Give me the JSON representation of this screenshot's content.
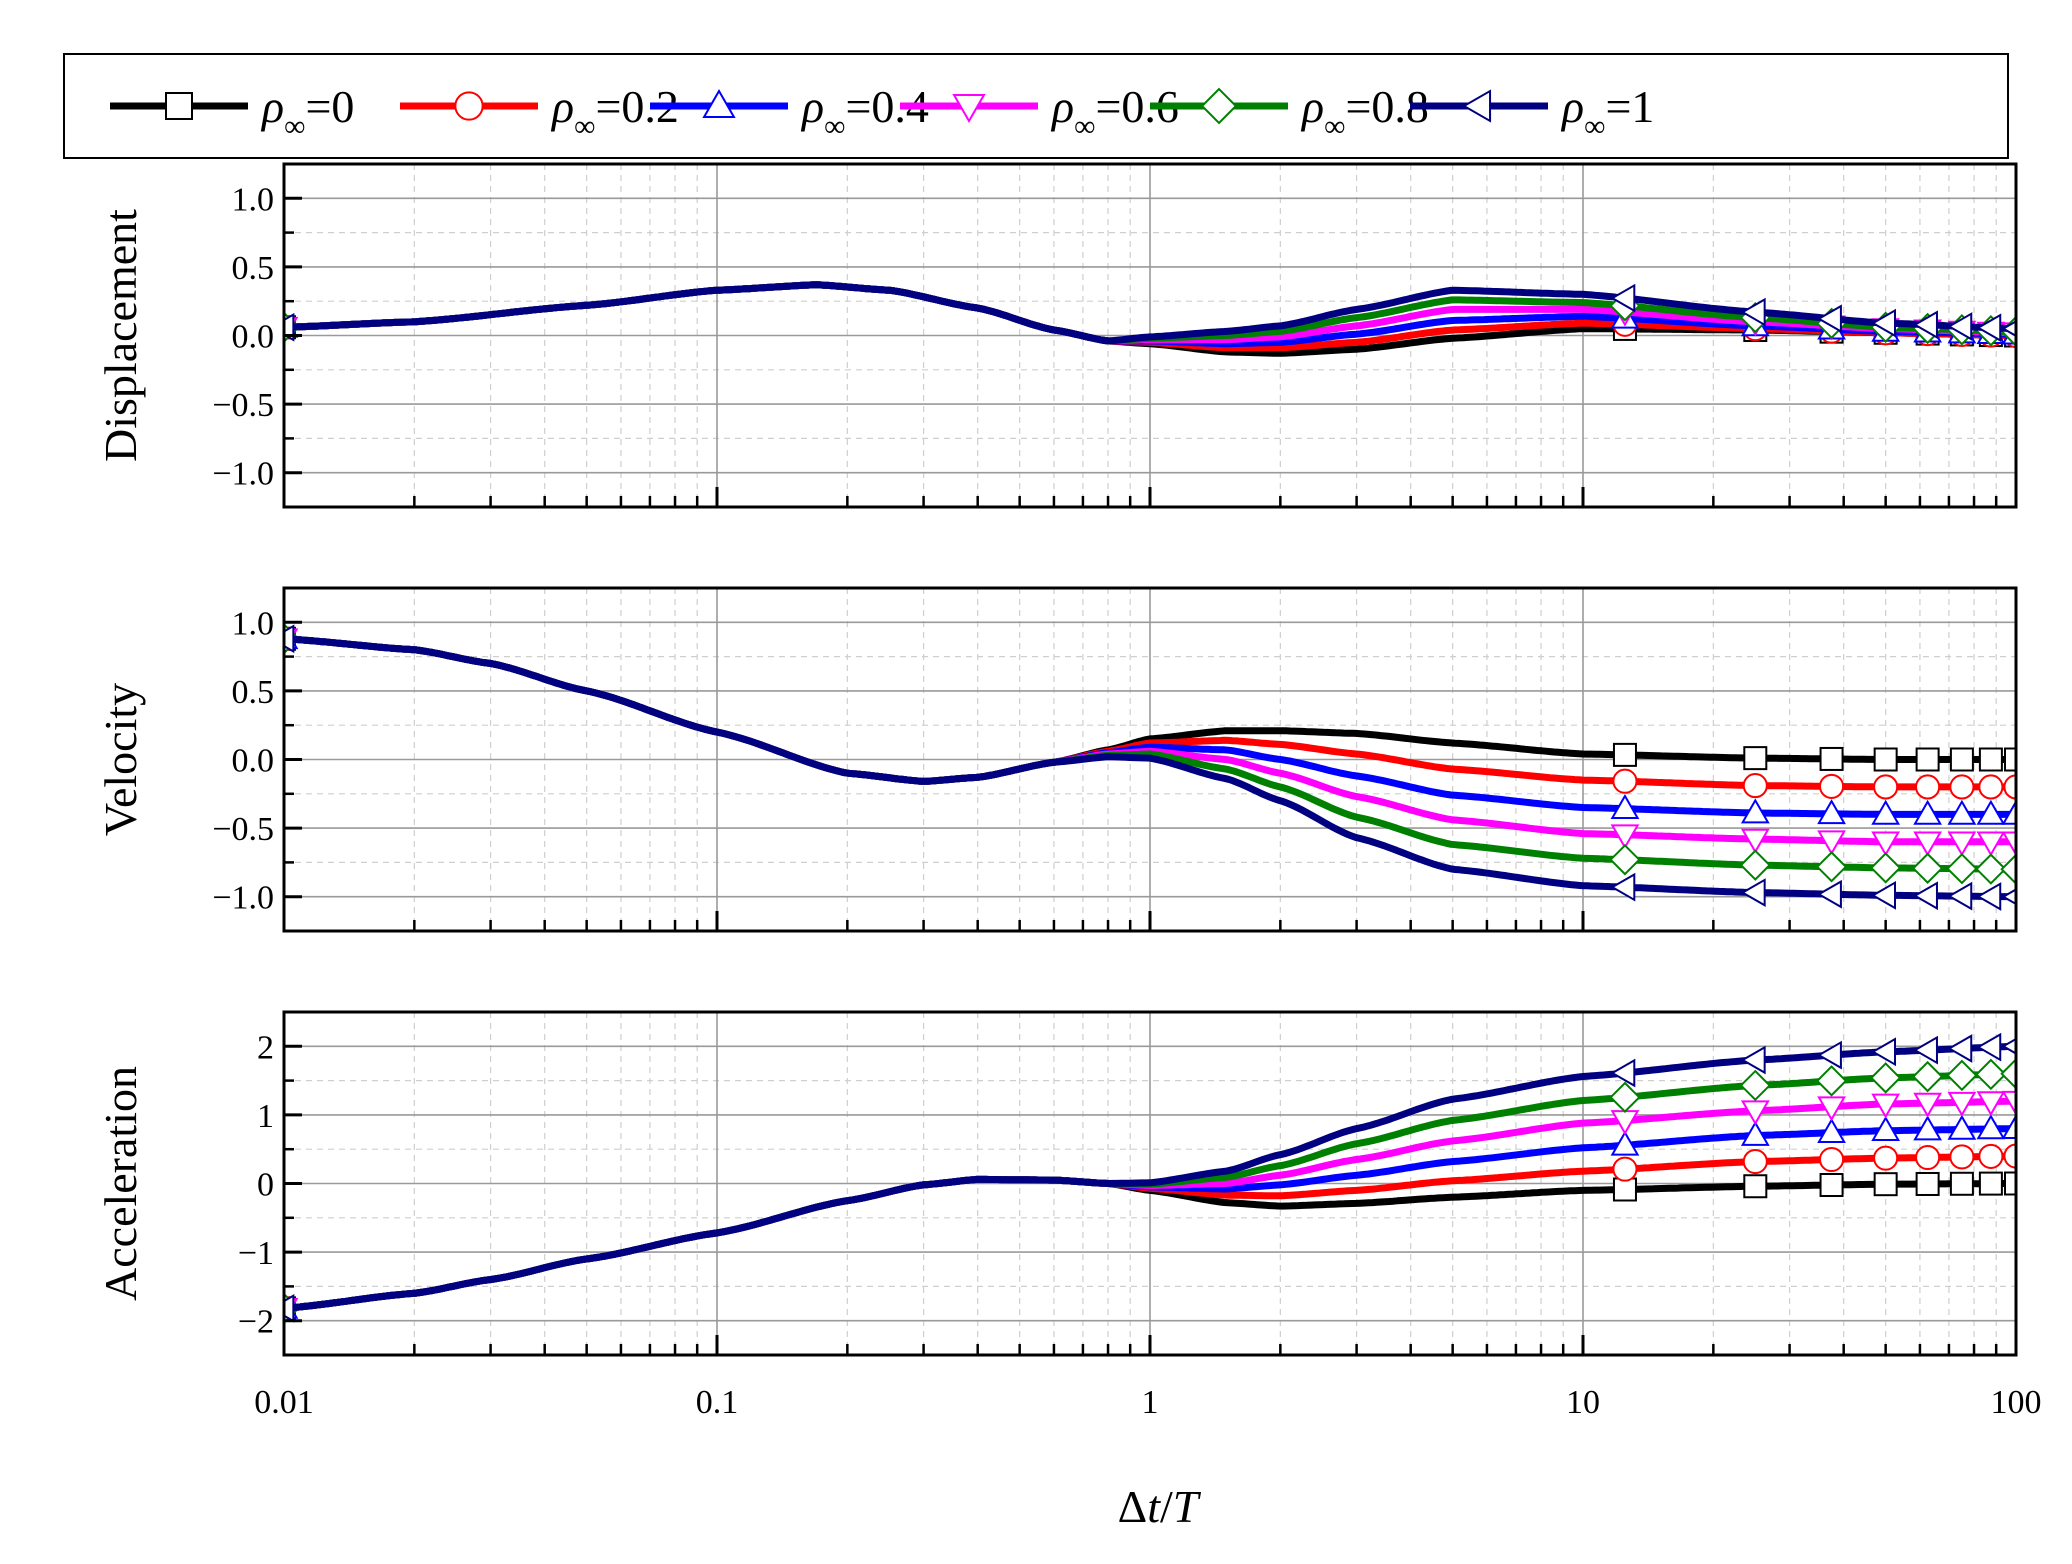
{
  "chart_data": {
    "type": "line",
    "x_scale": "log",
    "xlabel_delta": "Δ",
    "xlabel_t": "t",
    "xlabel_slash": "/",
    "xlabel_T": "T",
    "xlim": [
      0.01,
      100
    ],
    "xticks": [
      0.01,
      0.1,
      1,
      10,
      100
    ],
    "xtick_labels": [
      "0.01",
      "0.1",
      "1",
      "10",
      "100"
    ],
    "grid": true,
    "legend": {
      "placement": "top",
      "symbol": "ρ",
      "subscript": "∞",
      "entries": [
        "=0",
        "=0.2",
        "=0.4",
        "=0.6",
        "=0.8",
        "=1"
      ]
    },
    "series": [
      {
        "name": "ρ∞=0",
        "rho": 0,
        "color": "#000000",
        "marker": "square"
      },
      {
        "name": "ρ∞=0.2",
        "rho": 0.2,
        "color": "#ff0000",
        "marker": "circle"
      },
      {
        "name": "ρ∞=0.4",
        "rho": 0.4,
        "color": "#0000ff",
        "marker": "triangle-up"
      },
      {
        "name": "ρ∞=0.6",
        "rho": 0.6,
        "color": "#ff00ff",
        "marker": "triangle-down"
      },
      {
        "name": "ρ∞=0.8",
        "rho": 0.8,
        "color": "#008000",
        "marker": "diamond"
      },
      {
        "name": "ρ∞=1",
        "rho": 1,
        "color": "#000080",
        "marker": "triangle-left"
      }
    ],
    "marker_x": [
      12.5,
      25,
      37.5,
      50,
      62.5,
      75,
      87.5,
      100
    ],
    "panels": [
      {
        "ylabel": "Displacement",
        "ylim": [
          -1.25,
          1.25
        ],
        "yticks": [
          1.0,
          0.5,
          0.0,
          -0.5,
          -1.0
        ],
        "ytick_labels": [
          "1.0",
          "0.5",
          "0.0",
          "−0.5",
          "−1.0"
        ],
        "common": {
          "x": [
            0.01,
            0.02,
            0.05,
            0.1,
            0.17,
            0.25,
            0.4,
            0.6,
            0.8,
            1.0
          ],
          "y": [
            0.06,
            0.1,
            0.22,
            0.33,
            0.37,
            0.33,
            0.2,
            0.04,
            -0.04,
            -0.06
          ]
        },
        "rho_x": [
          1.0,
          1.5,
          2,
          3,
          5,
          10,
          25,
          50,
          100
        ],
        "by_rho": [
          [
            -0.06,
            -0.12,
            -0.13,
            -0.1,
            -0.02,
            0.05,
            0.04,
            0.02,
            0.0
          ],
          [
            -0.05,
            -0.09,
            -0.09,
            -0.05,
            0.04,
            0.09,
            0.05,
            0.02,
            0.0
          ],
          [
            -0.04,
            -0.06,
            -0.05,
            0.01,
            0.11,
            0.14,
            0.07,
            0.03,
            0.01
          ],
          [
            -0.03,
            -0.03,
            -0.01,
            0.07,
            0.19,
            0.19,
            0.1,
            0.05,
            0.02
          ],
          [
            -0.02,
            0.0,
            0.03,
            0.13,
            0.26,
            0.24,
            0.13,
            0.06,
            0.03
          ],
          [
            -0.01,
            0.03,
            0.07,
            0.19,
            0.33,
            0.3,
            0.17,
            0.09,
            0.05
          ]
        ]
      },
      {
        "ylabel": "Velocity",
        "ylim": [
          -1.25,
          1.25
        ],
        "yticks": [
          1.0,
          0.5,
          0.0,
          -0.5,
          -1.0
        ],
        "ytick_labels": [
          "1.0",
          "0.5",
          "0.0",
          "−0.5",
          "−1.0"
        ],
        "common": {
          "x": [
            0.01,
            0.02,
            0.03,
            0.05,
            0.1,
            0.2,
            0.3,
            0.4,
            0.6,
            0.8
          ],
          "y": [
            0.88,
            0.8,
            0.7,
            0.5,
            0.2,
            -0.1,
            -0.16,
            -0.13,
            -0.02,
            0.05
          ]
        },
        "rho_x": [
          0.8,
          1.0,
          1.5,
          2,
          3,
          5,
          10,
          25,
          50,
          100
        ],
        "by_rho": [
          [
            0.07,
            0.15,
            0.21,
            0.21,
            0.19,
            0.12,
            0.04,
            0.01,
            0.0,
            0.0
          ],
          [
            0.06,
            0.12,
            0.14,
            0.11,
            0.04,
            -0.07,
            -0.15,
            -0.19,
            -0.2,
            -0.2
          ],
          [
            0.05,
            0.09,
            0.07,
            0.0,
            -0.12,
            -0.26,
            -0.35,
            -0.39,
            -0.4,
            -0.4
          ],
          [
            0.04,
            0.06,
            0.0,
            -0.1,
            -0.27,
            -0.44,
            -0.54,
            -0.58,
            -0.6,
            -0.6
          ],
          [
            0.03,
            0.04,
            -0.07,
            -0.2,
            -0.42,
            -0.62,
            -0.72,
            -0.77,
            -0.79,
            -0.8
          ],
          [
            0.02,
            0.01,
            -0.14,
            -0.3,
            -0.57,
            -0.8,
            -0.92,
            -0.97,
            -0.99,
            -1.0
          ]
        ]
      },
      {
        "ylabel": "Acceleration",
        "ylim": [
          -2.5,
          2.5
        ],
        "yticks": [
          2,
          1,
          0,
          -1,
          -2
        ],
        "ytick_labels": [
          "2",
          "1",
          "0",
          "−1",
          "−2"
        ],
        "common": {
          "x": [
            0.01,
            0.02,
            0.03,
            0.05,
            0.1,
            0.2,
            0.3,
            0.4,
            0.6,
            0.8
          ],
          "y": [
            -1.82,
            -1.6,
            -1.4,
            -1.1,
            -0.72,
            -0.25,
            -0.02,
            0.06,
            0.05,
            0.0
          ]
        },
        "rho_x": [
          0.8,
          1.0,
          1.5,
          2,
          3,
          5,
          10,
          25,
          50,
          100
        ],
        "by_rho": [
          [
            0.0,
            -0.1,
            -0.28,
            -0.33,
            -0.29,
            -0.2,
            -0.1,
            -0.04,
            -0.01,
            0.0
          ],
          [
            0.0,
            -0.07,
            -0.17,
            -0.18,
            -0.1,
            0.04,
            0.18,
            0.32,
            0.37,
            0.4
          ],
          [
            0.0,
            -0.05,
            -0.08,
            -0.02,
            0.12,
            0.32,
            0.52,
            0.7,
            0.77,
            0.8
          ],
          [
            0.0,
            -0.03,
            0.0,
            0.12,
            0.35,
            0.62,
            0.88,
            1.06,
            1.16,
            1.2
          ],
          [
            0.0,
            -0.01,
            0.09,
            0.26,
            0.58,
            0.92,
            1.21,
            1.43,
            1.54,
            1.6
          ],
          [
            0.0,
            0.01,
            0.18,
            0.42,
            0.8,
            1.23,
            1.56,
            1.8,
            1.92,
            2.0
          ]
        ]
      }
    ]
  }
}
